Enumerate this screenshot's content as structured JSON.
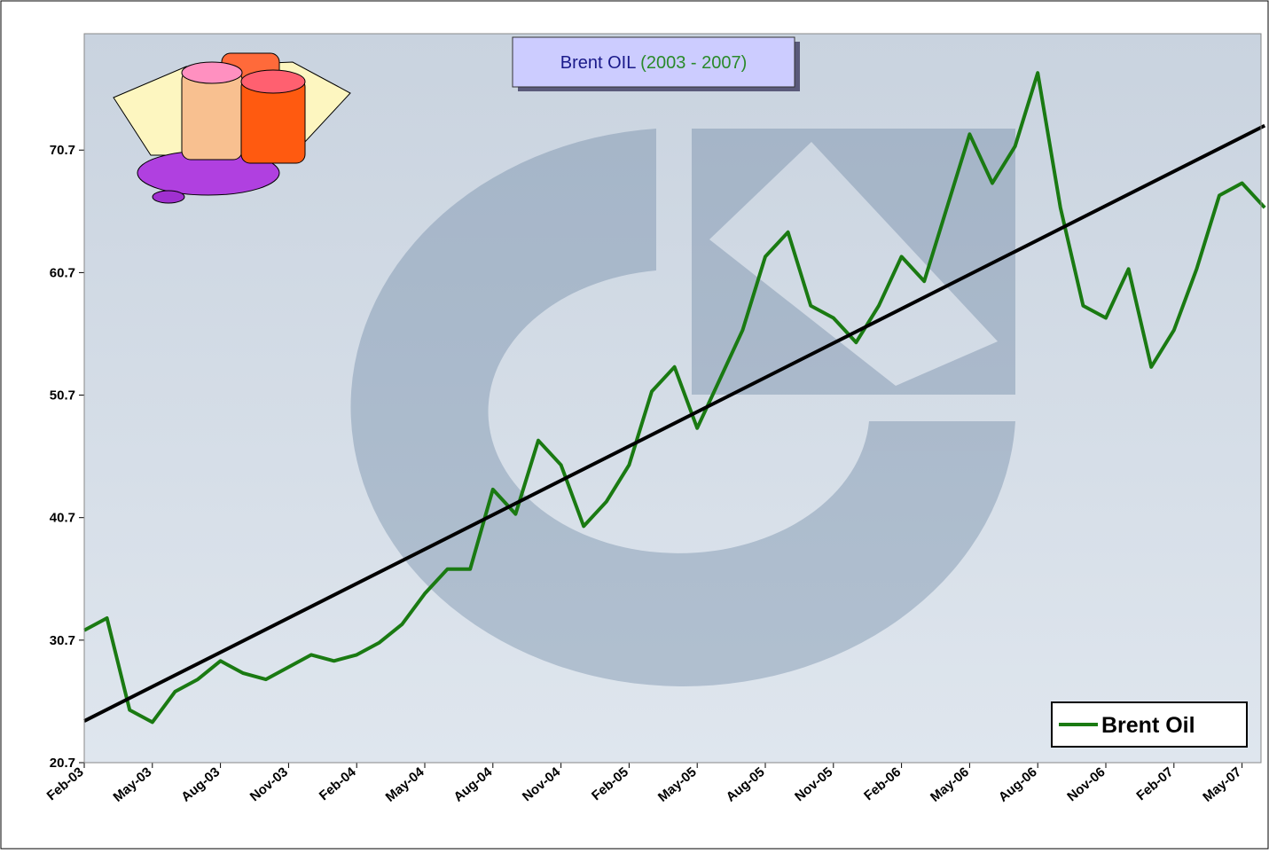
{
  "chart_data": {
    "type": "line",
    "title": "Brent OIL",
    "subtitle": "(2003 - 2007)",
    "categories": [
      "Feb-03",
      null,
      null,
      "May-03",
      null,
      null,
      "Aug-03",
      null,
      null,
      "Nov-03",
      null,
      null,
      "Feb-04",
      null,
      null,
      "May-04",
      null,
      null,
      "Aug-04",
      null,
      null,
      "Nov-04",
      null,
      null,
      "Feb-05",
      null,
      null,
      "May-05",
      null,
      null,
      "Aug-05",
      null,
      null,
      "Nov-05",
      null,
      null,
      "Feb-06",
      null,
      null,
      "May-06",
      null,
      null,
      "Aug-06",
      null,
      null,
      "Nov-06",
      null,
      null,
      "Feb-07",
      null,
      null,
      "May-07",
      null
    ],
    "series": [
      {
        "name": "Brent Oil",
        "color": "#1a7a12",
        "values": [
          31.5,
          32.5,
          25,
          24,
          26.5,
          27.5,
          29,
          28,
          27.5,
          28.5,
          29.5,
          29,
          29.5,
          30.5,
          32,
          34.5,
          36.5,
          36.5,
          43,
          41,
          47,
          45,
          40,
          42,
          45,
          51,
          53,
          48,
          52,
          56,
          62,
          64,
          58,
          57,
          55,
          58,
          62,
          60,
          66,
          72,
          68,
          71,
          77,
          66,
          58,
          57,
          61,
          53,
          56,
          61,
          67,
          68,
          66
        ]
      }
    ],
    "trend": {
      "color": "#000000",
      "values": [
        24.1,
        72.7
      ]
    },
    "ylim": [
      20.7,
      80.2
    ],
    "yticks": [
      20.7,
      30.7,
      40.7,
      50.7,
      60.7,
      70.7
    ],
    "legend": "bottom-right"
  }
}
